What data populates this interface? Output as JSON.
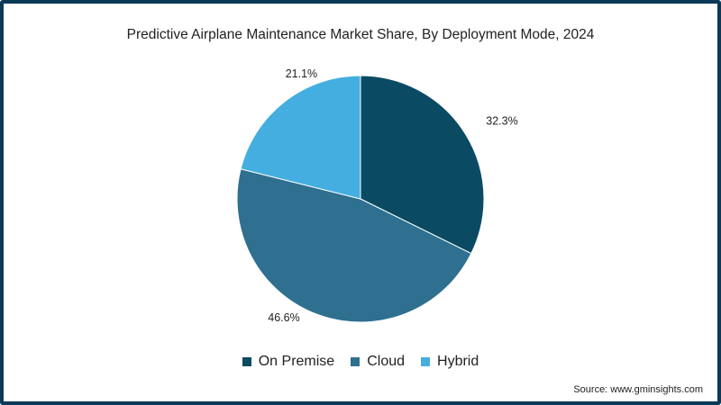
{
  "chart_data": {
    "type": "pie",
    "title": "Predictive Airplane Maintenance Market Share, By Deployment Mode, 2024",
    "categories": [
      "On Premise",
      "Cloud",
      "Hybrid"
    ],
    "values": [
      32.3,
      46.6,
      21.1
    ],
    "labels": [
      "32.3%",
      "46.6%",
      "21.1%"
    ],
    "colors": [
      "#0a4b63",
      "#2f6f90",
      "#45aee0"
    ],
    "legend_position": "bottom",
    "start": "top, clockwise"
  },
  "legend": [
    {
      "label": "On Premise",
      "color": "#0a4b63"
    },
    {
      "label": "Cloud",
      "color": "#2f6f90"
    },
    {
      "label": "Hybrid",
      "color": "#45aee0"
    }
  ],
  "source": "Source: www.gminsights.com"
}
